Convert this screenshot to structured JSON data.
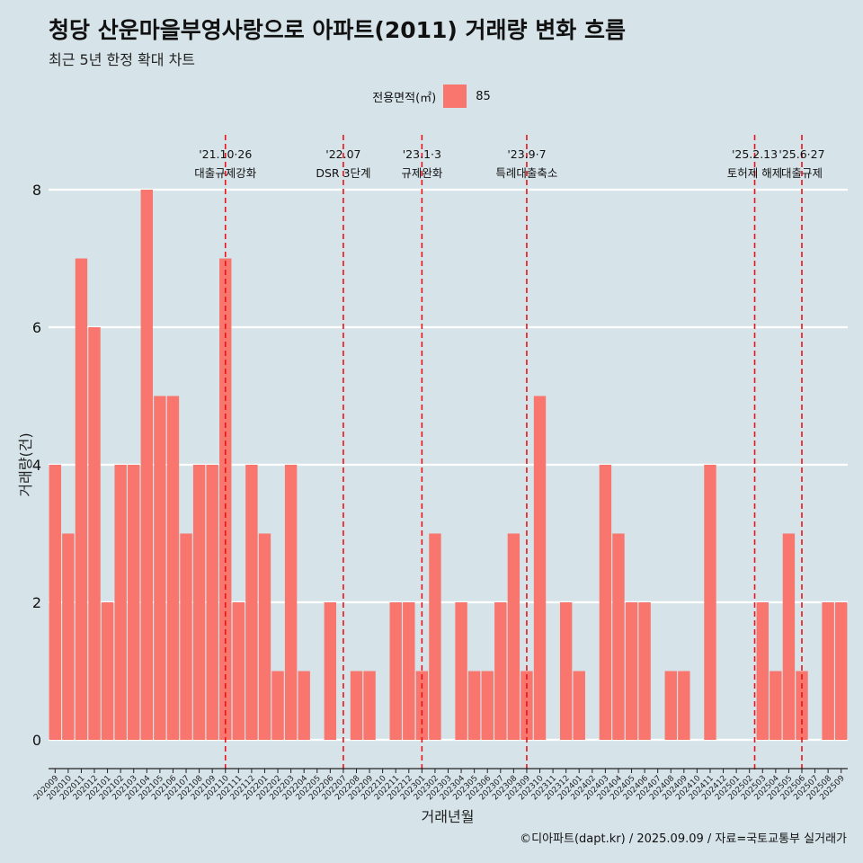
{
  "header": {
    "title": "청당 산운마을부영사랑으로 아파트(2011) 거래량 변화 흐름",
    "subtitle": "최근 5년 한정 확대 차트"
  },
  "legend": {
    "title": "전용면적(㎡)",
    "entries": [
      {
        "label": "85",
        "color": "#f8766d"
      }
    ]
  },
  "footer": {
    "caption": "©디아파트(dapt.kr) / 2025.09.09 / 자료=국토교통부 실거래가"
  },
  "colors": {
    "background": "#d6e4ea",
    "bar": "#f8766d",
    "event_line": "#e8141b",
    "grid": "#ffffff"
  },
  "chart_data": {
    "type": "bar",
    "xlabel": "거래년월",
    "ylabel": "거래량(건)",
    "ylim": [
      0,
      8
    ],
    "yticks": [
      0,
      2,
      4,
      6,
      8
    ],
    "grid": true,
    "legend_position": "top",
    "categories": [
      "202009",
      "202010",
      "202011",
      "202012",
      "202101",
      "202102",
      "202103",
      "202104",
      "202105",
      "202106",
      "202107",
      "202108",
      "202109",
      "202110",
      "202111",
      "202112",
      "202201",
      "202202",
      "202203",
      "202204",
      "202205",
      "202206",
      "202207",
      "202208",
      "202209",
      "202210",
      "202211",
      "202212",
      "202301",
      "202302",
      "202303",
      "202304",
      "202305",
      "202306",
      "202307",
      "202308",
      "202309",
      "202310",
      "202311",
      "202312",
      "202401",
      "202402",
      "202403",
      "202404",
      "202405",
      "202406",
      "202407",
      "202408",
      "202409",
      "202410",
      "202411",
      "202412",
      "202501",
      "202502",
      "202503",
      "202504",
      "202505",
      "202506",
      "202507",
      "202508",
      "202509"
    ],
    "series": [
      {
        "name": "85",
        "values": [
          4,
          3,
          7,
          6,
          2,
          4,
          4,
          8,
          5,
          5,
          3,
          4,
          4,
          7,
          2,
          4,
          3,
          1,
          4,
          1,
          0,
          2,
          0,
          1,
          1,
          0,
          2,
          2,
          1,
          3,
          0,
          2,
          1,
          1,
          2,
          3,
          1,
          5,
          0,
          2,
          1,
          0,
          4,
          3,
          2,
          2,
          0,
          1,
          1,
          0,
          4,
          0,
          0,
          0,
          2,
          1,
          3,
          1,
          0,
          2,
          2
        ]
      }
    ],
    "annotations": [
      {
        "date": "202110",
        "label_top": "'21.10·26",
        "label_bottom": "대출규제강화",
        "offset": 0
      },
      {
        "date": "202207",
        "label_top": "'22.07",
        "label_bottom": "DSR 3단계",
        "offset": 0
      },
      {
        "date": "202301",
        "label_top": "'23.1·3",
        "label_bottom": "규제완화",
        "offset": 0
      },
      {
        "date": "202309",
        "label_top": "'23.9·7",
        "label_bottom": "특례대출축소",
        "offset": 0
      },
      {
        "date": "202502",
        "label_top": "'25.2.13",
        "label_bottom": "토허제 해제",
        "offset": 0.4
      },
      {
        "date": "202506",
        "label_top": "'25.6·27",
        "label_bottom": "대출규제",
        "offset": 0
      }
    ]
  }
}
